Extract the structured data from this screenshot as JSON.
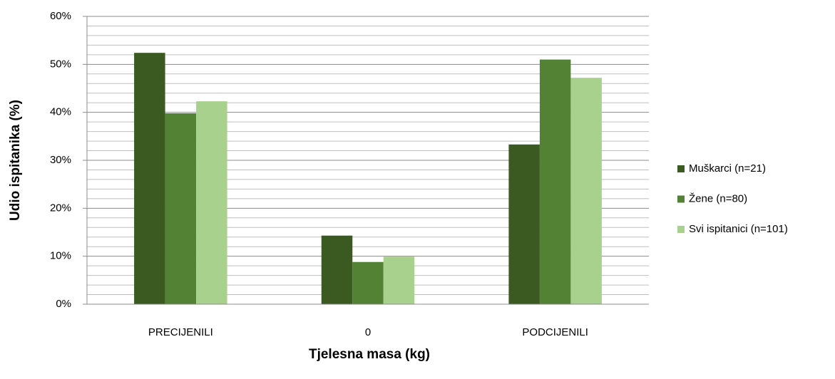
{
  "chart_data": {
    "type": "bar",
    "x_label": "Tjelesna masa (kg)",
    "y_label": "Udio ispitanika (%)",
    "categories": [
      "PRECIJENILI",
      "0",
      "PODCIJENILI"
    ],
    "series": [
      {
        "name": "Muškarci (n=21)",
        "color": "#3a5a22",
        "values": [
          52.4,
          14.3,
          33.3
        ]
      },
      {
        "name": "Žene (n=80)",
        "color": "#548235",
        "values": [
          39.8,
          8.8,
          51.0
        ]
      },
      {
        "name": "Svi ispitanici (n=101)",
        "color": "#a9d18e",
        "values": [
          42.3,
          9.9,
          47.2
        ]
      }
    ],
    "ylim": [
      0,
      60
    ],
    "yticks": [
      {
        "value": 0,
        "label": "0%"
      },
      {
        "value": 10,
        "label": "10%"
      },
      {
        "value": 20,
        "label": "20%"
      },
      {
        "value": 30,
        "label": "30%"
      },
      {
        "value": 40,
        "label": "40%"
      },
      {
        "value": 50,
        "label": "50%"
      },
      {
        "value": 60,
        "label": "60%"
      }
    ],
    "yminor_ticks": [
      2,
      4,
      6,
      8,
      12,
      14,
      16,
      18,
      22,
      24,
      26,
      28,
      32,
      34,
      36,
      38,
      42,
      44,
      46,
      48,
      52,
      54,
      56,
      58
    ],
    "grid": true,
    "legend": "right"
  }
}
